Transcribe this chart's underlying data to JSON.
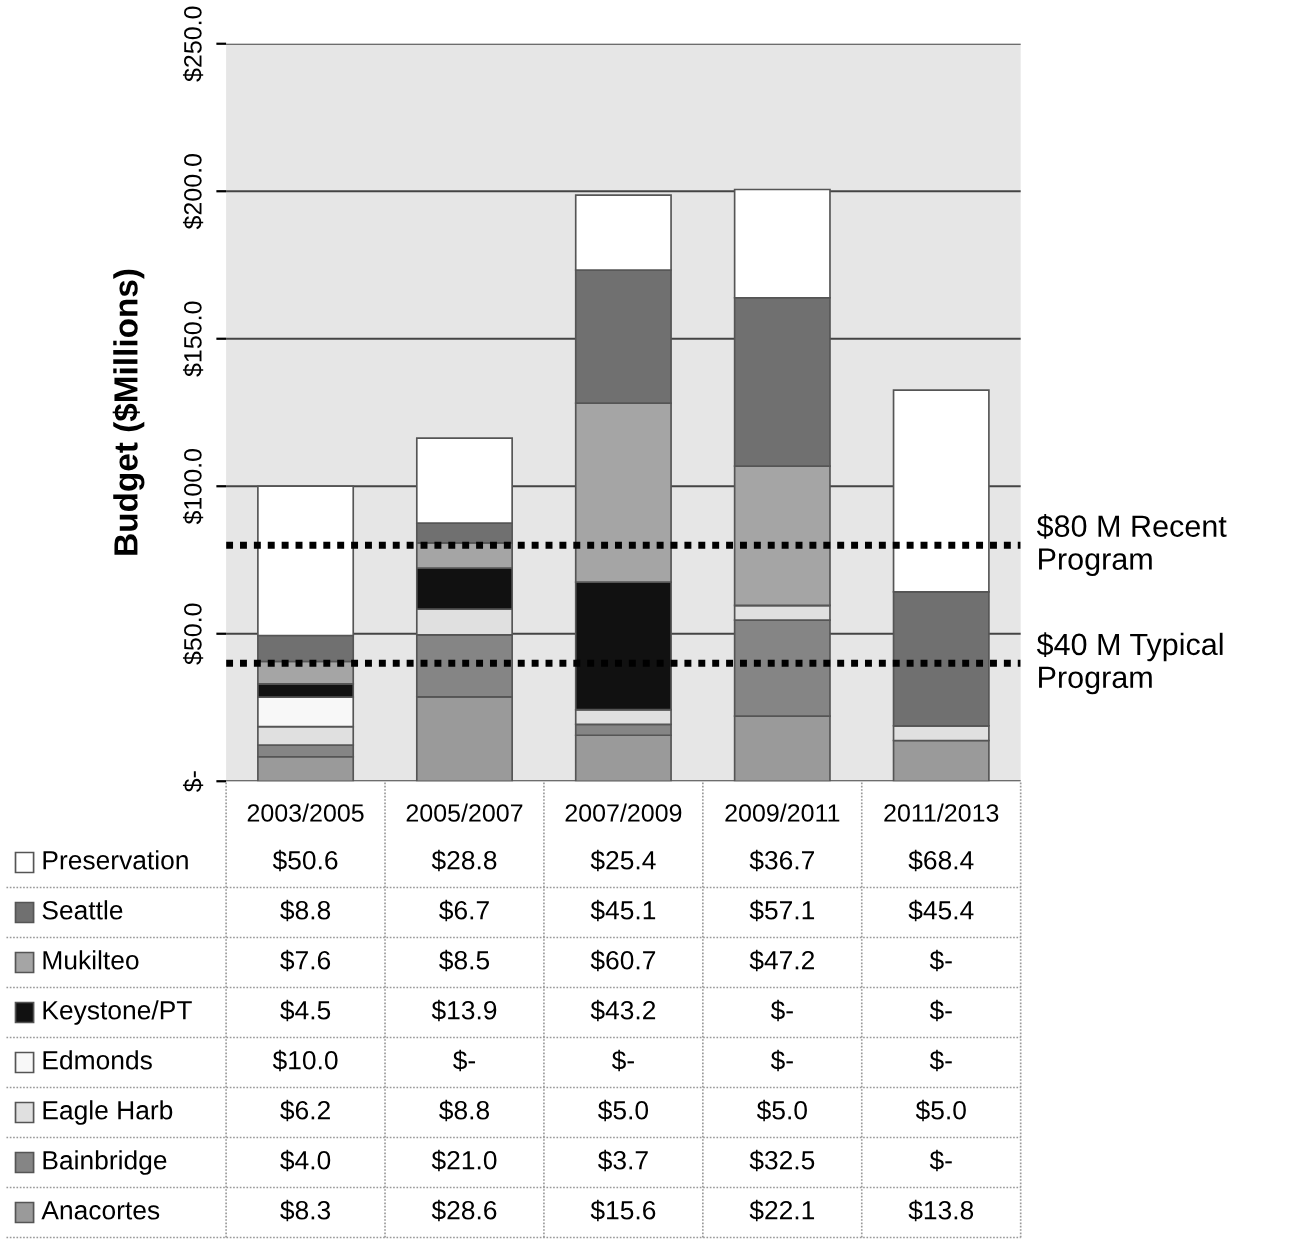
{
  "chart_data": {
    "type": "bar",
    "stacked": true,
    "ylabel": "Budget ($Millions)",
    "categories": [
      "2003/2005",
      "2005/2007",
      "2007/2009",
      "2009/2011",
      "2011/2013"
    ],
    "series": [
      {
        "name": "Anacortes",
        "color": "#9a9a9a",
        "values": [
          8.3,
          28.6,
          15.6,
          22.1,
          13.8
        ],
        "value_labels": [
          "$8.3",
          "$28.6",
          "$15.6",
          "$22.1",
          "$13.8"
        ]
      },
      {
        "name": "Bainbridge",
        "color": "#858585",
        "values": [
          4.0,
          21.0,
          3.7,
          32.5,
          0
        ],
        "value_labels": [
          "$4.0",
          "$21.0",
          "$3.7",
          "$32.5",
          "$-"
        ]
      },
      {
        "name": "Eagle Harb",
        "color": "#e0e0e0",
        "values": [
          6.2,
          8.8,
          5.0,
          5.0,
          5.0
        ],
        "value_labels": [
          "$6.2",
          "$8.8",
          "$5.0",
          "$5.0",
          "$5.0"
        ]
      },
      {
        "name": "Edmonds",
        "color": "#f8f8f8",
        "values": [
          10.0,
          0,
          0,
          0,
          0
        ],
        "value_labels": [
          "$10.0",
          "$-",
          "$-",
          "$-",
          "$-"
        ]
      },
      {
        "name": "Keystone/PT",
        "color": "#111111",
        "values": [
          4.5,
          13.9,
          43.2,
          0,
          0
        ],
        "value_labels": [
          "$4.5",
          "$13.9",
          "$43.2",
          "$-",
          "$-"
        ]
      },
      {
        "name": "Mukilteo",
        "color": "#a5a5a5",
        "values": [
          7.6,
          8.5,
          60.7,
          47.2,
          0
        ],
        "value_labels": [
          "$7.6",
          "$8.5",
          "$60.7",
          "$47.2",
          "$-"
        ]
      },
      {
        "name": "Seattle",
        "color": "#707070",
        "values": [
          8.8,
          6.7,
          45.1,
          57.1,
          45.4
        ],
        "value_labels": [
          "$8.8",
          "$6.7",
          "$45.1",
          "$57.1",
          "$45.4"
        ]
      },
      {
        "name": "Preservation",
        "color": "#ffffff",
        "values": [
          50.6,
          28.8,
          25.4,
          36.7,
          68.4
        ],
        "value_labels": [
          "$50.6",
          "$28.8",
          "$25.4",
          "$36.7",
          "$68.4"
        ]
      }
    ],
    "ylim": [
      0,
      250
    ],
    "yticks": [
      {
        "value": 0,
        "label": "$-"
      },
      {
        "value": 50,
        "label": "$50.0"
      },
      {
        "value": 100,
        "label": "$100.0"
      },
      {
        "value": 150,
        "label": "$150.0"
      },
      {
        "value": 200,
        "label": "$200.0"
      },
      {
        "value": 250,
        "label": "$250.0"
      }
    ],
    "grid": "y",
    "legend": "bottom",
    "ref_lines": [
      {
        "axis": "y",
        "value": 80,
        "label": "$80 M Recent Program",
        "color": "#000000",
        "line_style": "dotted"
      },
      {
        "axis": "y",
        "value": 40,
        "label": "$40 M Typical Program",
        "color": "#000000",
        "line_style": "dotted"
      }
    ]
  }
}
